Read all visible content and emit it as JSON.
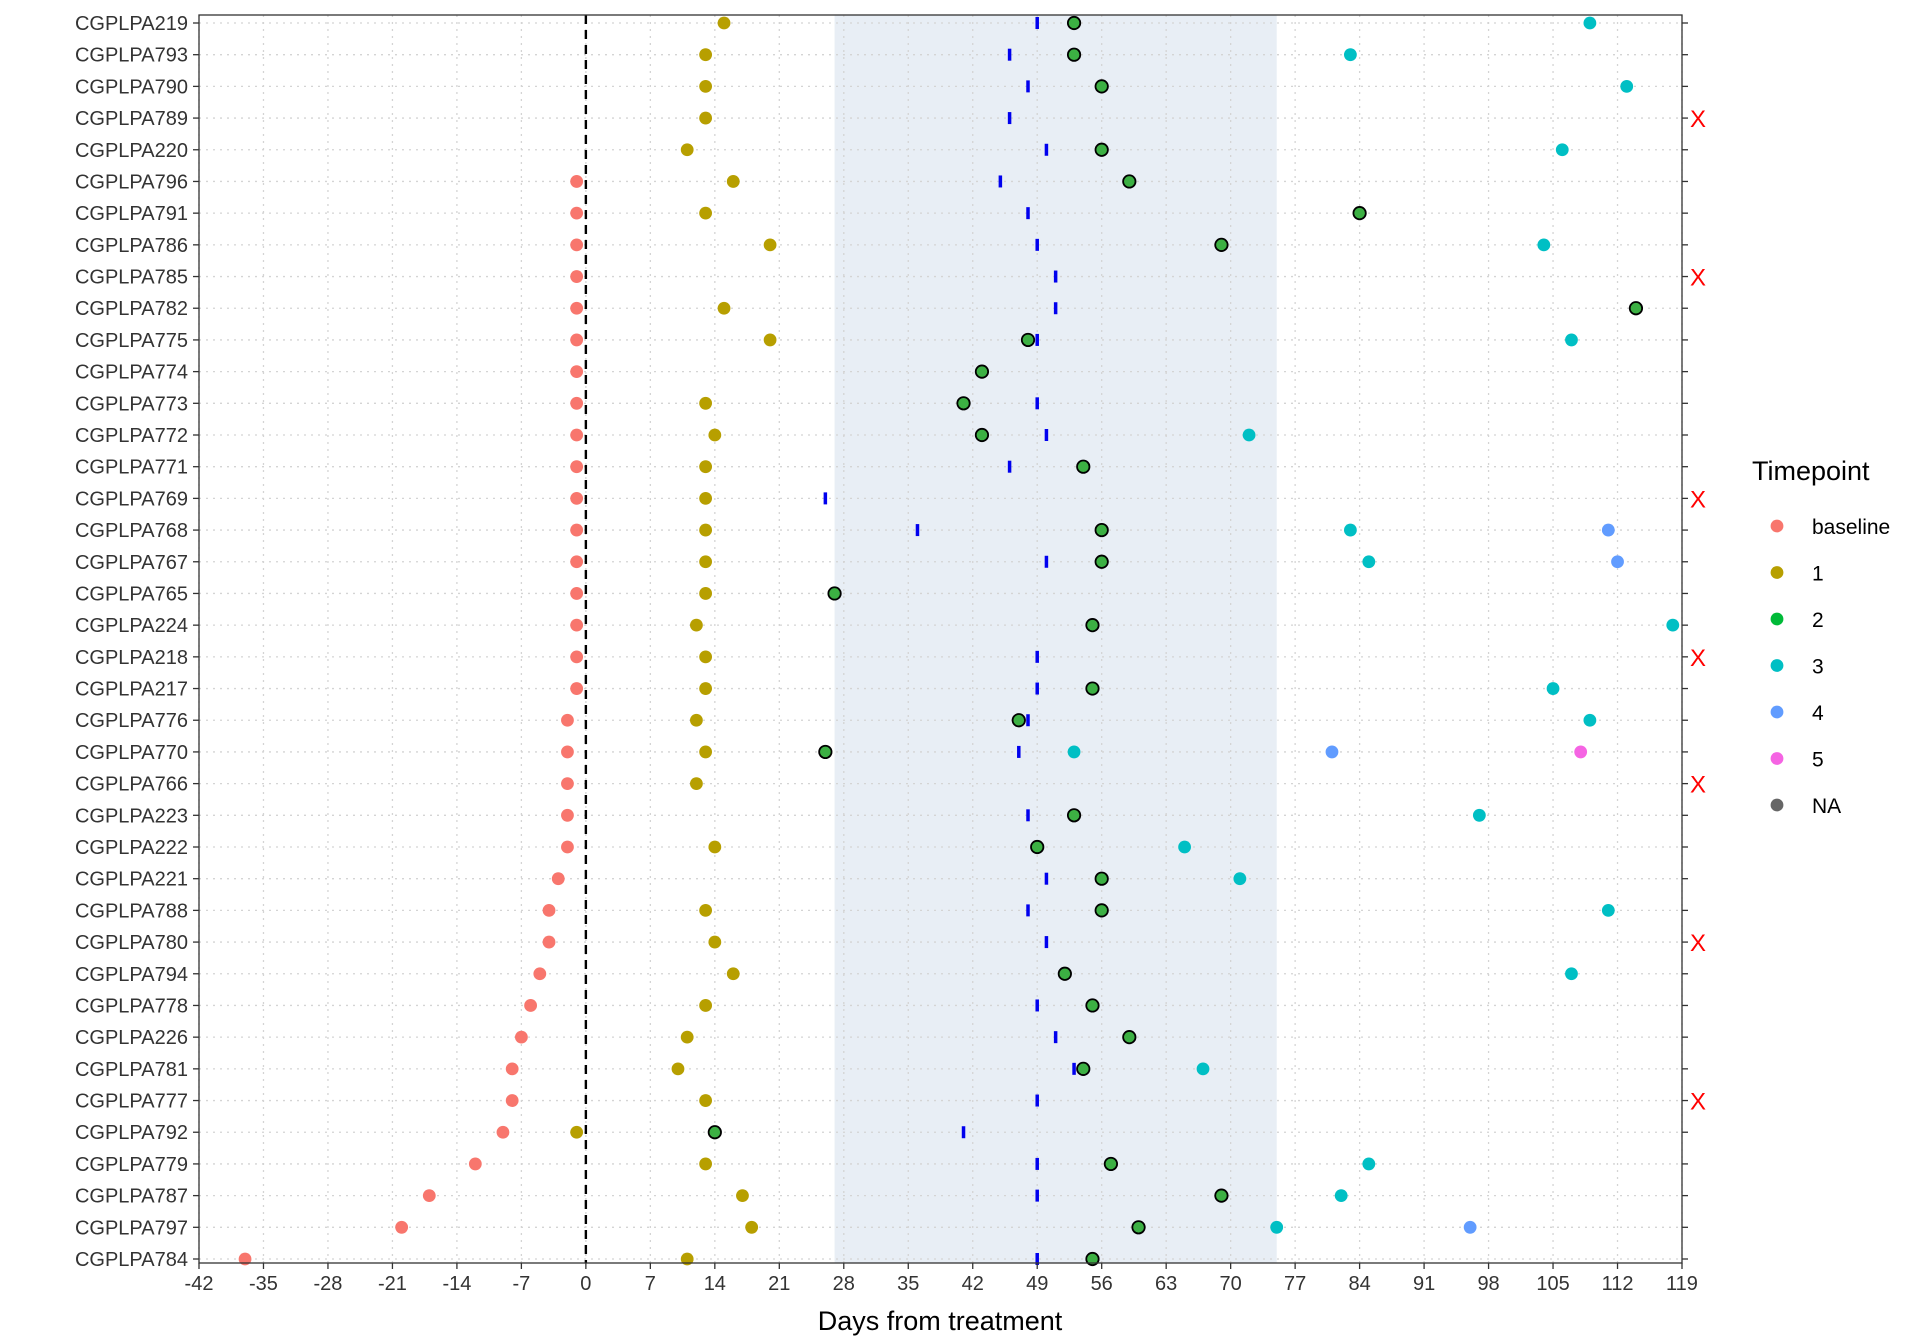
{
  "chart_data": {
    "type": "scatter",
    "xlabel": "Days from treatment",
    "xlim": [
      -42,
      119
    ],
    "xticks": [
      -42,
      -35,
      -28,
      -21,
      -14,
      -7,
      0,
      7,
      14,
      21,
      28,
      35,
      42,
      49,
      56,
      63,
      70,
      77,
      84,
      91,
      98,
      105,
      112,
      119
    ],
    "xtick_labels": [
      "-42",
      "-35",
      "-28",
      "-21",
      "-14",
      "-7",
      "0",
      "7",
      "14",
      "21",
      "28",
      "35",
      "42",
      "49",
      "56",
      "63",
      "70",
      "77",
      "84",
      "91",
      "98",
      "105",
      "112",
      "119"
    ],
    "grid": true,
    "shaded_region": {
      "x": [
        27,
        75
      ],
      "color": "#e8eef5"
    },
    "reference_line": {
      "x": 0,
      "style": "dashed",
      "color": "#000000"
    },
    "legend": {
      "title": "Timepoint",
      "placement": "right",
      "entries": [
        {
          "label": "baseline",
          "color": "#F8766D"
        },
        {
          "label": "1",
          "color": "#B79F00"
        },
        {
          "label": "2",
          "color": "#00BA38"
        },
        {
          "label": "3",
          "color": "#00BFC4"
        },
        {
          "label": "4",
          "color": "#619CFF"
        },
        {
          "label": "5",
          "color": "#F564E3"
        },
        {
          "label": "NA",
          "color": "#666666"
        }
      ]
    },
    "outlined_fill_color": "#3CB043",
    "tick_mark_color": "#0000ee",
    "x_marker": {
      "text": "X",
      "color": "#ff0000"
    },
    "categories": [
      "CGPLPA219",
      "CGPLPA793",
      "CGPLPA790",
      "CGPLPA789",
      "CGPLPA220",
      "CGPLPA796",
      "CGPLPA791",
      "CGPLPA786",
      "CGPLPA785",
      "CGPLPA782",
      "CGPLPA775",
      "CGPLPA774",
      "CGPLPA773",
      "CGPLPA772",
      "CGPLPA771",
      "CGPLPA769",
      "CGPLPA768",
      "CGPLPA767",
      "CGPLPA765",
      "CGPLPA224",
      "CGPLPA218",
      "CGPLPA217",
      "CGPLPA776",
      "CGPLPA770",
      "CGPLPA766",
      "CGPLPA223",
      "CGPLPA222",
      "CGPLPA221",
      "CGPLPA788",
      "CGPLPA780",
      "CGPLPA794",
      "CGPLPA778",
      "CGPLPA226",
      "CGPLPA781",
      "CGPLPA777",
      "CGPLPA792",
      "CGPLPA779",
      "CGPLPA787",
      "CGPLPA797",
      "CGPLPA784"
    ],
    "patients": [
      {
        "id": "CGPLPA219",
        "points": [
          {
            "x": 15,
            "t": "1"
          },
          {
            "x": 53,
            "t": "2o"
          },
          {
            "x": 109,
            "t": "3"
          }
        ],
        "tick": 49,
        "x_marker": false
      },
      {
        "id": "CGPLPA793",
        "points": [
          {
            "x": 13,
            "t": "1"
          },
          {
            "x": 53,
            "t": "2o"
          },
          {
            "x": 83,
            "t": "3"
          }
        ],
        "tick": 46,
        "x_marker": false
      },
      {
        "id": "CGPLPA790",
        "points": [
          {
            "x": 13,
            "t": "1"
          },
          {
            "x": 56,
            "t": "2o"
          },
          {
            "x": 113,
            "t": "3"
          }
        ],
        "tick": 48,
        "x_marker": false
      },
      {
        "id": "CGPLPA789",
        "points": [
          {
            "x": 13,
            "t": "1"
          }
        ],
        "tick": 46,
        "x_marker": true
      },
      {
        "id": "CGPLPA220",
        "points": [
          {
            "x": 11,
            "t": "1"
          },
          {
            "x": 56,
            "t": "2o"
          },
          {
            "x": 106,
            "t": "3"
          }
        ],
        "tick": 50,
        "x_marker": false
      },
      {
        "id": "CGPLPA796",
        "points": [
          {
            "x": -1,
            "t": "baseline"
          },
          {
            "x": 16,
            "t": "1"
          },
          {
            "x": 59,
            "t": "2o"
          }
        ],
        "tick": 45,
        "x_marker": false
      },
      {
        "id": "CGPLPA791",
        "points": [
          {
            "x": -1,
            "t": "baseline"
          },
          {
            "x": 13,
            "t": "1"
          },
          {
            "x": 84,
            "t": "2o"
          }
        ],
        "tick": 48,
        "x_marker": false
      },
      {
        "id": "CGPLPA786",
        "points": [
          {
            "x": -1,
            "t": "baseline"
          },
          {
            "x": 20,
            "t": "1"
          },
          {
            "x": 69,
            "t": "2o"
          },
          {
            "x": 104,
            "t": "3"
          }
        ],
        "tick": 49,
        "x_marker": false
      },
      {
        "id": "CGPLPA785",
        "points": [
          {
            "x": -1,
            "t": "baseline"
          }
        ],
        "tick": 51,
        "x_marker": true
      },
      {
        "id": "CGPLPA782",
        "points": [
          {
            "x": -1,
            "t": "baseline"
          },
          {
            "x": 15,
            "t": "1"
          },
          {
            "x": 114,
            "t": "2o"
          }
        ],
        "tick": 51,
        "x_marker": false
      },
      {
        "id": "CGPLPA775",
        "points": [
          {
            "x": -1,
            "t": "baseline"
          },
          {
            "x": 20,
            "t": "1"
          },
          {
            "x": 48,
            "t": "2o"
          },
          {
            "x": 107,
            "t": "3"
          }
        ],
        "tick": 49,
        "x_marker": false
      },
      {
        "id": "CGPLPA774",
        "points": [
          {
            "x": -1,
            "t": "baseline"
          },
          {
            "x": 43,
            "t": "2o"
          }
        ],
        "tick": 43,
        "x_marker": false
      },
      {
        "id": "CGPLPA773",
        "points": [
          {
            "x": -1,
            "t": "baseline"
          },
          {
            "x": 13,
            "t": "1"
          },
          {
            "x": 41,
            "t": "2o"
          }
        ],
        "tick": 49,
        "x_marker": false
      },
      {
        "id": "CGPLPA772",
        "points": [
          {
            "x": -1,
            "t": "baseline"
          },
          {
            "x": 14,
            "t": "1"
          },
          {
            "x": 43,
            "t": "2o"
          },
          {
            "x": 72,
            "t": "3"
          }
        ],
        "tick": 50,
        "x_marker": false
      },
      {
        "id": "CGPLPA771",
        "points": [
          {
            "x": -1,
            "t": "baseline"
          },
          {
            "x": 13,
            "t": "1"
          },
          {
            "x": 54,
            "t": "2o"
          }
        ],
        "tick": 46,
        "x_marker": false
      },
      {
        "id": "CGPLPA769",
        "points": [
          {
            "x": -1,
            "t": "baseline"
          },
          {
            "x": 13,
            "t": "1"
          }
        ],
        "tick": 26,
        "x_marker": true
      },
      {
        "id": "CGPLPA768",
        "points": [
          {
            "x": -1,
            "t": "baseline"
          },
          {
            "x": 13,
            "t": "1"
          },
          {
            "x": 56,
            "t": "2o"
          },
          {
            "x": 83,
            "t": "3"
          },
          {
            "x": 111,
            "t": "4"
          }
        ],
        "tick": 36,
        "x_marker": false
      },
      {
        "id": "CGPLPA767",
        "points": [
          {
            "x": -1,
            "t": "baseline"
          },
          {
            "x": 13,
            "t": "1"
          },
          {
            "x": 56,
            "t": "2o"
          },
          {
            "x": 85,
            "t": "3"
          },
          {
            "x": 112,
            "t": "4"
          }
        ],
        "tick": 50,
        "x_marker": false
      },
      {
        "id": "CGPLPA765",
        "points": [
          {
            "x": -1,
            "t": "baseline"
          },
          {
            "x": 13,
            "t": "1"
          },
          {
            "x": 27,
            "t": "2o"
          }
        ],
        "tick": null,
        "x_marker": false
      },
      {
        "id": "CGPLPA224",
        "points": [
          {
            "x": -1,
            "t": "baseline"
          },
          {
            "x": 12,
            "t": "1"
          },
          {
            "x": 55,
            "t": "2o"
          },
          {
            "x": 118,
            "t": "3"
          }
        ],
        "tick": 55,
        "x_marker": false
      },
      {
        "id": "CGPLPA218",
        "points": [
          {
            "x": -1,
            "t": "baseline"
          },
          {
            "x": 13,
            "t": "1"
          }
        ],
        "tick": 49,
        "x_marker": true
      },
      {
        "id": "CGPLPA217",
        "points": [
          {
            "x": -1,
            "t": "baseline"
          },
          {
            "x": 13,
            "t": "1"
          },
          {
            "x": 55,
            "t": "2o"
          },
          {
            "x": 105,
            "t": "3"
          }
        ],
        "tick": 49,
        "x_marker": false
      },
      {
        "id": "CGPLPA776",
        "points": [
          {
            "x": -2,
            "t": "baseline"
          },
          {
            "x": 12,
            "t": "1"
          },
          {
            "x": 47,
            "t": "2o"
          },
          {
            "x": 109,
            "t": "3"
          }
        ],
        "tick": 48,
        "x_marker": false
      },
      {
        "id": "CGPLPA770",
        "points": [
          {
            "x": -2,
            "t": "baseline"
          },
          {
            "x": 13,
            "t": "1"
          },
          {
            "x": 26,
            "t": "2o"
          },
          {
            "x": 53,
            "t": "3"
          },
          {
            "x": 81,
            "t": "4"
          },
          {
            "x": 108,
            "t": "5"
          }
        ],
        "tick": 47,
        "x_marker": false
      },
      {
        "id": "CGPLPA766",
        "points": [
          {
            "x": -2,
            "t": "baseline"
          },
          {
            "x": 12,
            "t": "1"
          }
        ],
        "tick": null,
        "x_marker": true
      },
      {
        "id": "CGPLPA223",
        "points": [
          {
            "x": -2,
            "t": "baseline"
          },
          {
            "x": 53,
            "t": "2o"
          },
          {
            "x": 97,
            "t": "3"
          }
        ],
        "tick": 48,
        "x_marker": false
      },
      {
        "id": "CGPLPA222",
        "points": [
          {
            "x": -2,
            "t": "baseline"
          },
          {
            "x": 14,
            "t": "1"
          },
          {
            "x": 49,
            "t": "2o"
          },
          {
            "x": 65,
            "t": "3"
          }
        ],
        "tick": 49,
        "x_marker": false
      },
      {
        "id": "CGPLPA221",
        "points": [
          {
            "x": -3,
            "t": "baseline"
          },
          {
            "x": 56,
            "t": "2o"
          },
          {
            "x": 71,
            "t": "3"
          }
        ],
        "tick": 50,
        "x_marker": false
      },
      {
        "id": "CGPLPA788",
        "points": [
          {
            "x": -4,
            "t": "baseline"
          },
          {
            "x": 13,
            "t": "1"
          },
          {
            "x": 56,
            "t": "2o"
          },
          {
            "x": 111,
            "t": "3"
          }
        ],
        "tick": 48,
        "x_marker": false
      },
      {
        "id": "CGPLPA780",
        "points": [
          {
            "x": -4,
            "t": "baseline"
          },
          {
            "x": 14,
            "t": "1"
          }
        ],
        "tick": 50,
        "x_marker": true
      },
      {
        "id": "CGPLPA794",
        "points": [
          {
            "x": -5,
            "t": "baseline"
          },
          {
            "x": 16,
            "t": "1"
          },
          {
            "x": 52,
            "t": "2o"
          },
          {
            "x": 107,
            "t": "3"
          }
        ],
        "tick": 52,
        "x_marker": false
      },
      {
        "id": "CGPLPA778",
        "points": [
          {
            "x": -6,
            "t": "baseline"
          },
          {
            "x": 13,
            "t": "1"
          },
          {
            "x": 55,
            "t": "2o"
          }
        ],
        "tick": 49,
        "x_marker": false
      },
      {
        "id": "CGPLPA226",
        "points": [
          {
            "x": -7,
            "t": "baseline"
          },
          {
            "x": 11,
            "t": "1"
          },
          {
            "x": 59,
            "t": "2o"
          }
        ],
        "tick": 51,
        "x_marker": false
      },
      {
        "id": "CGPLPA781",
        "points": [
          {
            "x": -8,
            "t": "baseline"
          },
          {
            "x": 10,
            "t": "1"
          },
          {
            "x": 54,
            "t": "2o"
          },
          {
            "x": 67,
            "t": "3"
          }
        ],
        "tick": 53,
        "x_marker": false
      },
      {
        "id": "CGPLPA777",
        "points": [
          {
            "x": -8,
            "t": "baseline"
          },
          {
            "x": 13,
            "t": "1"
          }
        ],
        "tick": 49,
        "x_marker": true
      },
      {
        "id": "CGPLPA792",
        "points": [
          {
            "x": -9,
            "t": "baseline"
          },
          {
            "x": -1,
            "t": "1"
          },
          {
            "x": 14,
            "t": "2o"
          }
        ],
        "tick": 41,
        "x_marker": false
      },
      {
        "id": "CGPLPA779",
        "points": [
          {
            "x": -12,
            "t": "baseline"
          },
          {
            "x": 13,
            "t": "1"
          },
          {
            "x": 57,
            "t": "2o"
          },
          {
            "x": 85,
            "t": "3"
          }
        ],
        "tick": 49,
        "x_marker": false
      },
      {
        "id": "CGPLPA787",
        "points": [
          {
            "x": -17,
            "t": "baseline"
          },
          {
            "x": 17,
            "t": "1"
          },
          {
            "x": 69,
            "t": "2o"
          },
          {
            "x": 82,
            "t": "3"
          }
        ],
        "tick": 49,
        "x_marker": false
      },
      {
        "id": "CGPLPA797",
        "points": [
          {
            "x": -20,
            "t": "baseline"
          },
          {
            "x": 18,
            "t": "1"
          },
          {
            "x": 60,
            "t": "2o"
          },
          {
            "x": 75,
            "t": "3"
          },
          {
            "x": 96,
            "t": "4"
          }
        ],
        "tick": 60,
        "x_marker": false
      },
      {
        "id": "CGPLPA784",
        "points": [
          {
            "x": -37,
            "t": "baseline"
          },
          {
            "x": 11,
            "t": "1"
          },
          {
            "x": 55,
            "t": "2o"
          }
        ],
        "tick": 49,
        "x_marker": false
      }
    ]
  }
}
